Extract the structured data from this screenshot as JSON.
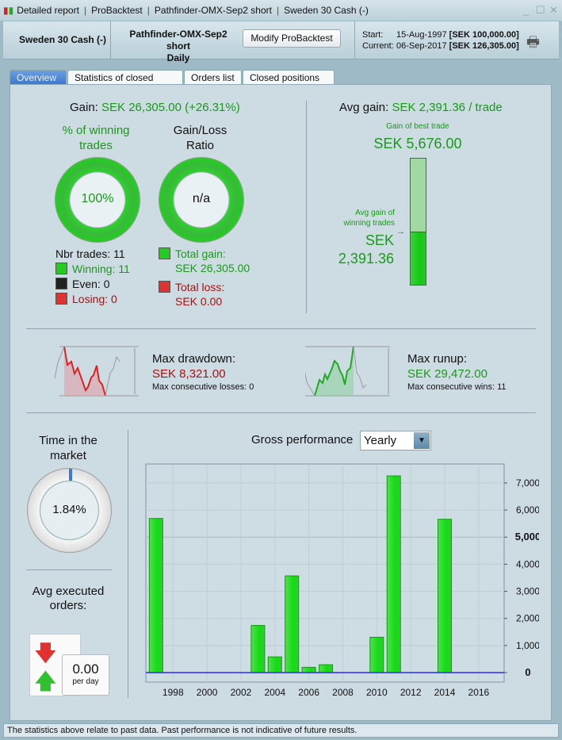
{
  "window": {
    "title_parts": [
      "Detailed report",
      "ProBacktest",
      "Pathfinder-OMX-Sep2 short",
      "Sweden 30 Cash (-)"
    ]
  },
  "header": {
    "instrument": "Sweden 30 Cash (-)",
    "strategy": "Pathfinder-OMX-Sep2 short",
    "timeframe": "Daily",
    "modify_label": "Modify ProBacktest",
    "start_label": "Start:",
    "start_date": "15-Aug-1997",
    "start_capital": "[SEK 100,000.00]",
    "current_label": "Current:",
    "current_date": "06-Sep-2017",
    "current_capital": "[SEK 126,305.00]"
  },
  "tabs": [
    {
      "label": "Overview",
      "active": true
    },
    {
      "label": "Statistics of closed trades"
    },
    {
      "label": "Orders list"
    },
    {
      "label": "Closed positions list"
    }
  ],
  "overview": {
    "gain_label": "Gain:",
    "gain_value": "SEK 26,305.00 (+26.31%)",
    "winning_title": "% of winning trades",
    "winning_pct": "100%",
    "ratio_title": "Gain/Loss Ratio",
    "ratio_value": "n/a",
    "nbr_trades": "Nbr trades: 11",
    "winning": "Winning: 11",
    "even": "Even: 0",
    "losing": "Losing: 0",
    "total_gain_label": "Total gain:",
    "total_gain": "SEK 26,305.00",
    "total_loss_label": "Total loss:",
    "total_loss": "SEK 0.00",
    "avg_gain_label": "Avg gain:",
    "avg_gain_value": "SEK 2,391.36 / trade",
    "best_trade_label": "Gain of best trade",
    "best_trade": "SEK 5,676.00",
    "avg_win_label": "Avg gain of winning trades",
    "avg_win_currency": "SEK",
    "avg_win_value": "2,391.36",
    "avg_win_fraction": 0.4213,
    "drawdown_label": "Max drawdown:",
    "drawdown_value": "SEK 8,321.00",
    "drawdown_sub": "Max consecutive losses: 0",
    "runup_label": "Max runup:",
    "runup_value": "SEK 29,472.00",
    "runup_sub": "Max consecutive wins: 11",
    "time_label": "Time in the market",
    "time_value": "1.84%",
    "time_fraction": 0.0184,
    "orders_label": "Avg executed orders:",
    "orders_value": "0.00",
    "orders_unit": "per day",
    "perf_label": "Gross performance",
    "perf_period": "Yearly"
  },
  "colors": {
    "gain": "#1a9a1a",
    "loss": "#aa1010",
    "bar": "#22cc22",
    "zero_line": "#2a2aff"
  },
  "chart_data": {
    "type": "bar",
    "x": [
      1997,
      2003,
      2004,
      2005,
      2006,
      2007,
      2010,
      2011,
      2014
    ],
    "values": [
      5690,
      1740,
      580,
      3570,
      195,
      290,
      1305,
      7260,
      5660
    ],
    "xlim": [
      1996.4,
      2017.5
    ],
    "ylim": [
      -350,
      7700
    ],
    "xticks": [
      "1998",
      "2000",
      "2002",
      "2004",
      "2006",
      "2008",
      "2010",
      "2012",
      "2014",
      "2016"
    ],
    "yticks": [
      "0",
      "1,000",
      "2,000",
      "3,000",
      "4,000",
      "5,000",
      "6,000",
      "7,000"
    ],
    "grid": true
  },
  "status": "The statistics above relate to past data. Past performance is not indicative of future results."
}
